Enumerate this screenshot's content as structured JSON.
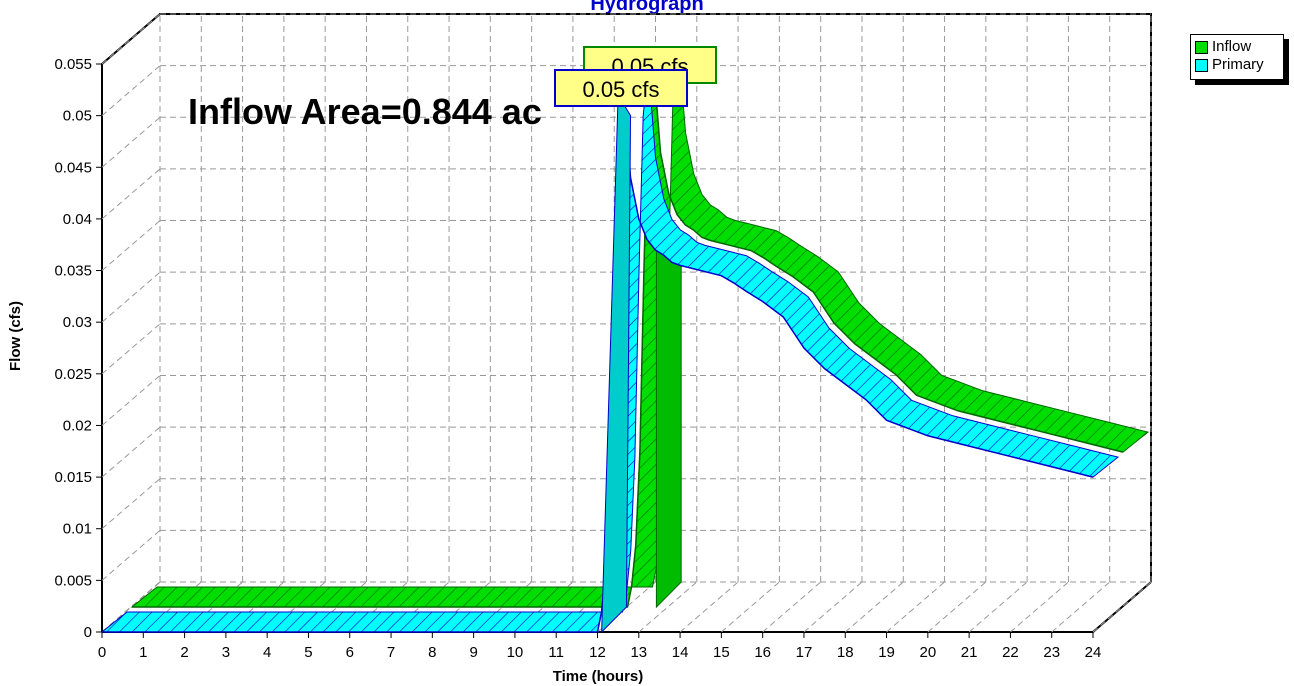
{
  "chart_data": {
    "type": "area",
    "title": "Hydrograph",
    "annotation": "Inflow Area=0.844 ac",
    "xlabel": "Time  (hours)",
    "ylabel": "Flow  (cfs)",
    "xlim": [
      0,
      24
    ],
    "ylim": [
      0,
      0.055
    ],
    "x_ticks": [
      "0",
      "1",
      "2",
      "3",
      "4",
      "5",
      "6",
      "7",
      "8",
      "9",
      "10",
      "11",
      "12",
      "13",
      "14",
      "15",
      "16",
      "17",
      "18",
      "19",
      "20",
      "21",
      "22",
      "23",
      "24"
    ],
    "y_ticks": [
      "0",
      "0.005",
      "0.01",
      "0.015",
      "0.02",
      "0.025",
      "0.03",
      "0.035",
      "0.04",
      "0.045",
      "0.05",
      "0.055"
    ],
    "grid": true,
    "legend_position": "top-right",
    "series": [
      {
        "name": "Inflow",
        "color": "#00dd00",
        "peak_label": "0.05 cfs",
        "x": [
          0,
          12.0,
          12.1,
          12.2,
          12.3,
          12.4,
          12.5,
          12.6,
          12.7,
          12.8,
          13.0,
          13.2,
          13.4,
          13.6,
          13.8,
          14.0,
          14.5,
          15.0,
          15.3,
          15.6,
          16.0,
          16.5,
          17.0,
          17.5,
          18.0,
          18.5,
          19.0,
          20.0,
          21.0,
          22.0,
          23.0,
          24.0
        ],
        "values": [
          0,
          0,
          0.002,
          0.006,
          0.015,
          0.033,
          0.048,
          0.052,
          0.049,
          0.044,
          0.04,
          0.038,
          0.037,
          0.0365,
          0.0358,
          0.0355,
          0.035,
          0.0345,
          0.0338,
          0.033,
          0.032,
          0.0305,
          0.0275,
          0.0255,
          0.024,
          0.0225,
          0.0205,
          0.019,
          0.018,
          0.017,
          0.016,
          0.015
        ]
      },
      {
        "name": "Primary",
        "color": "#00ffff",
        "peak_label": "0.05 cfs",
        "x": [
          0,
          12.0,
          12.1,
          12.2,
          12.3,
          12.4,
          12.5,
          12.6,
          12.7,
          12.8,
          13.0,
          13.2,
          13.4,
          13.6,
          13.8,
          14.0,
          14.5,
          15.0,
          15.3,
          15.6,
          16.0,
          16.5,
          17.0,
          17.5,
          18.0,
          18.5,
          19.0,
          20.0,
          21.0,
          22.0,
          23.0,
          24.0
        ],
        "values": [
          0,
          0,
          0.002,
          0.006,
          0.015,
          0.033,
          0.048,
          0.052,
          0.049,
          0.044,
          0.04,
          0.038,
          0.037,
          0.0365,
          0.0358,
          0.0355,
          0.035,
          0.0345,
          0.0338,
          0.033,
          0.032,
          0.0305,
          0.0275,
          0.0255,
          0.024,
          0.0225,
          0.0205,
          0.019,
          0.018,
          0.017,
          0.016,
          0.015
        ]
      }
    ]
  }
}
